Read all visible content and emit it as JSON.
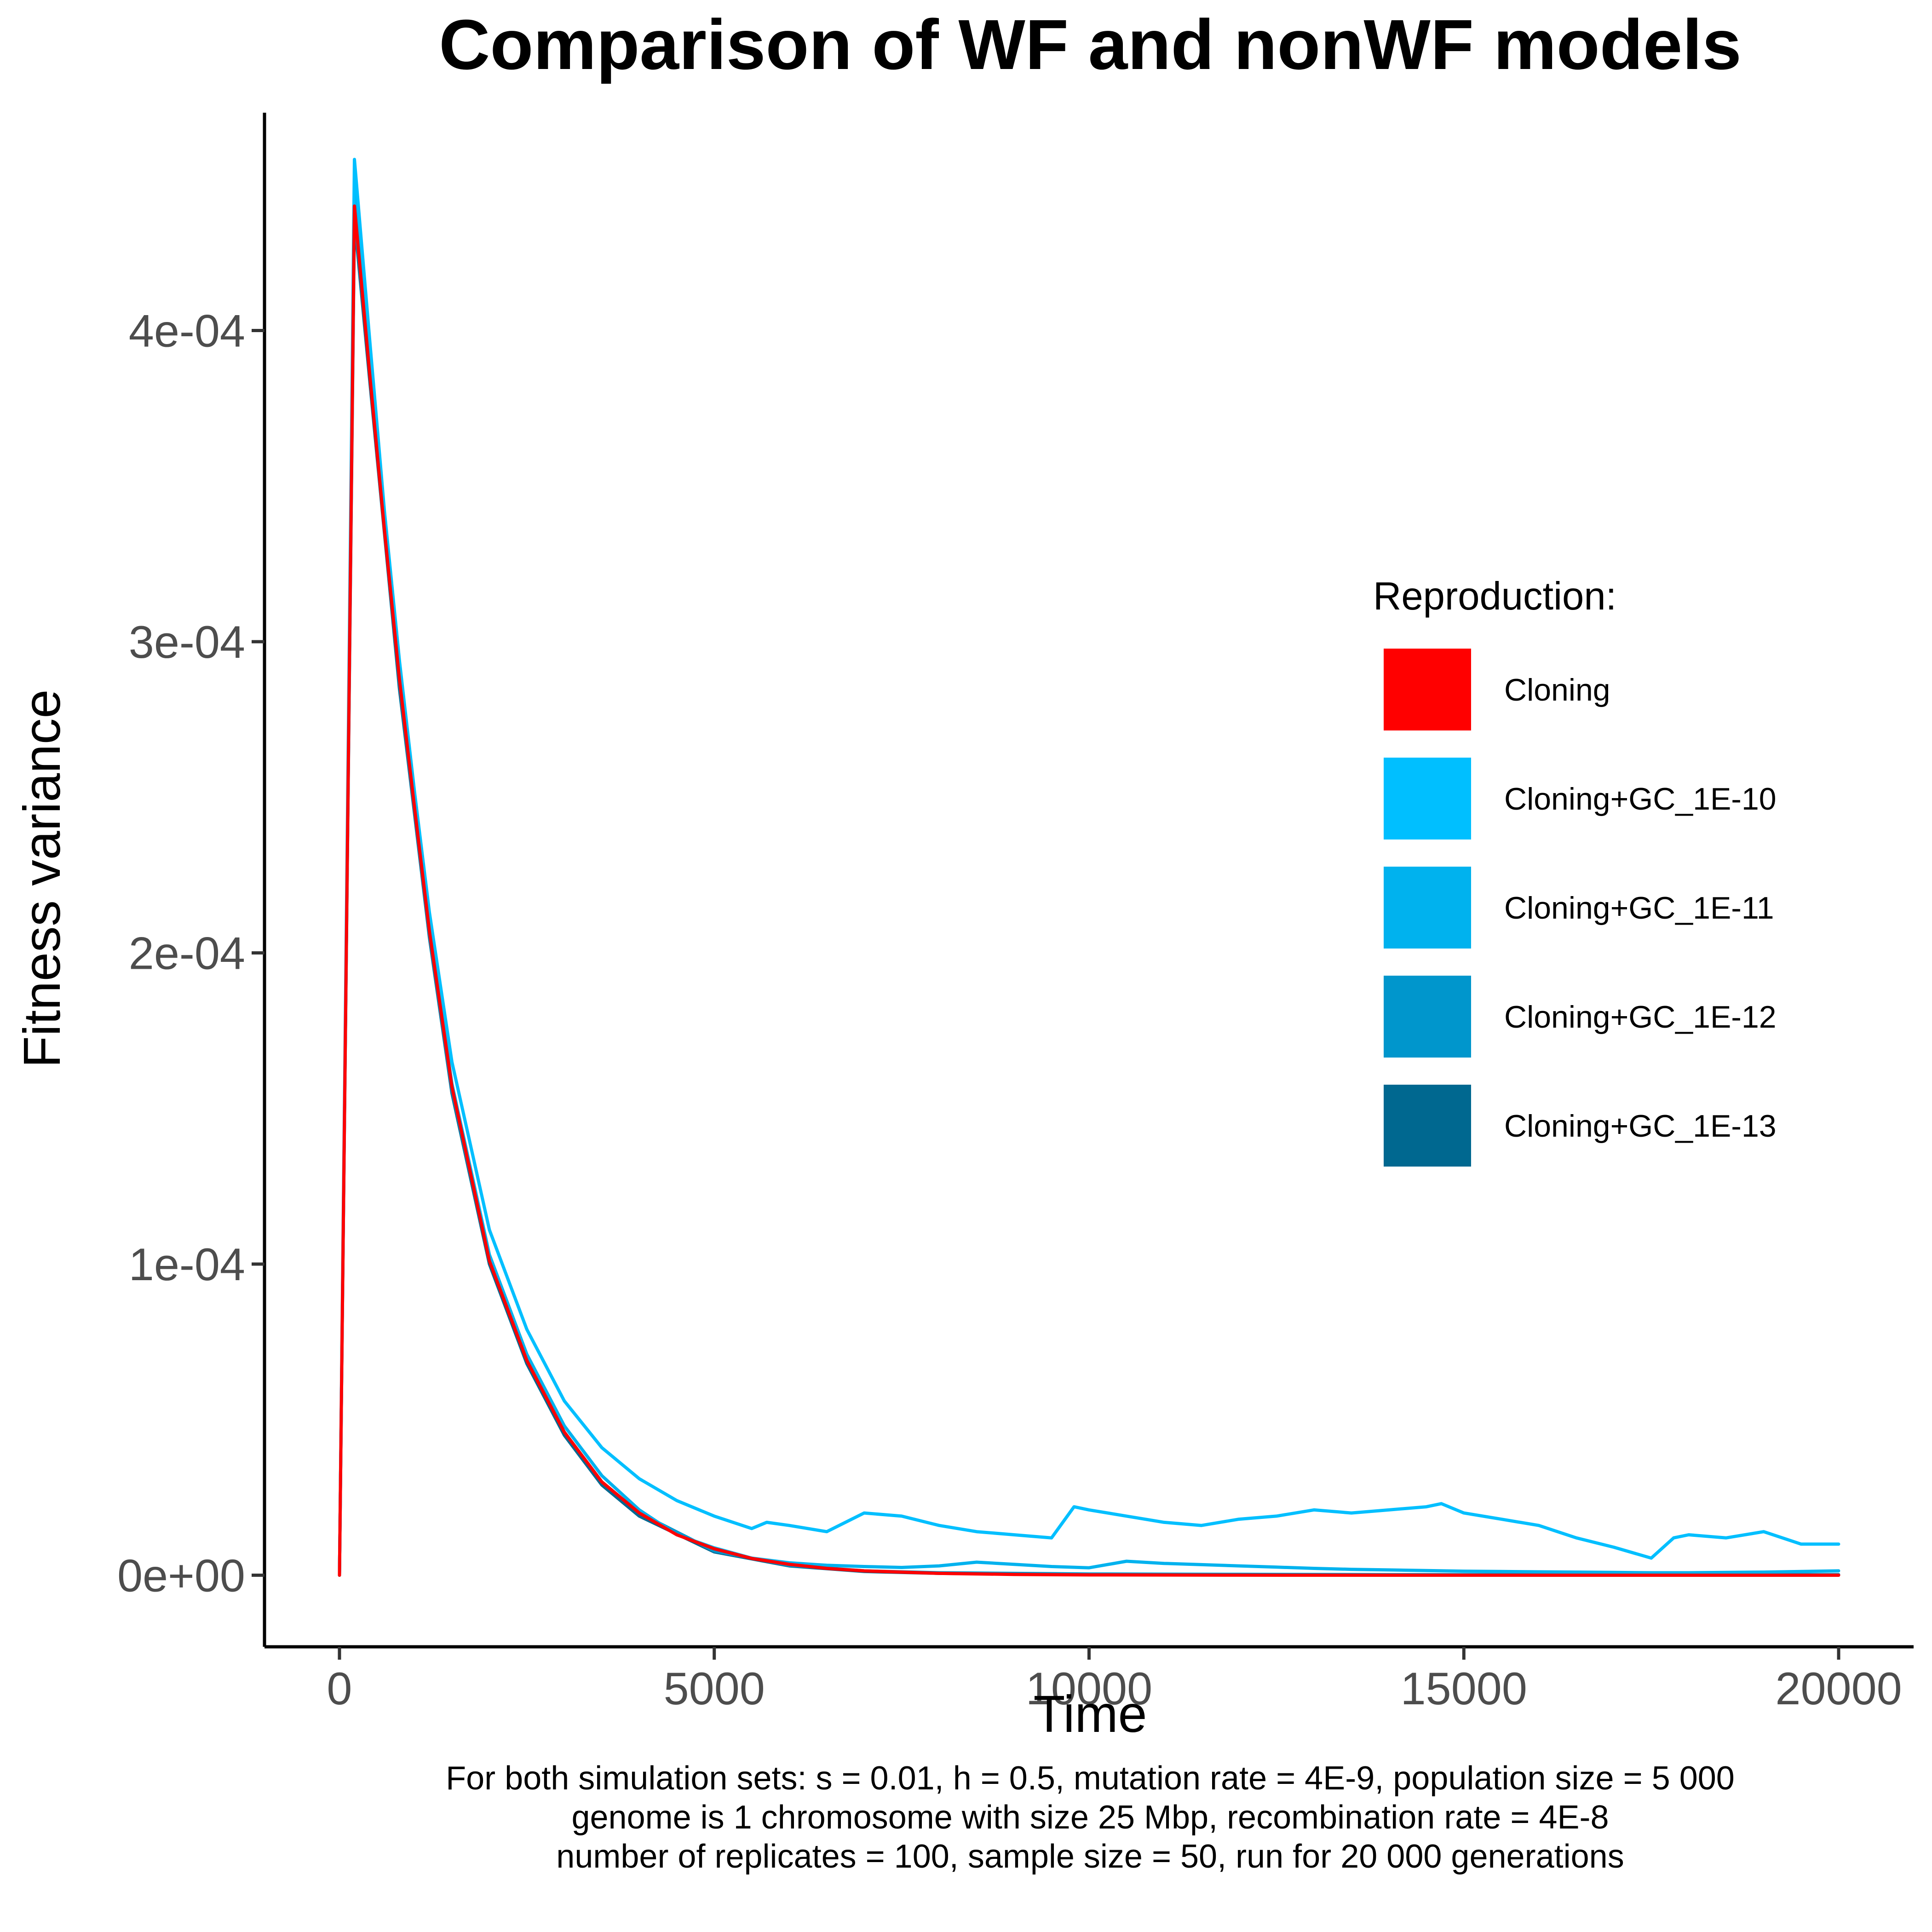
{
  "chart_data": {
    "type": "line",
    "title": "Comparison of WF and nonWF models",
    "xlabel": "Time",
    "ylabel": "Fitness variance",
    "xlim": [
      -1000,
      21000
    ],
    "ylim": [
      -2.3e-05,
      0.00047
    ],
    "x_ticks": [
      0,
      5000,
      10000,
      15000,
      20000
    ],
    "x_tick_labels": [
      "0",
      "5000",
      "10000",
      "15000",
      "20000"
    ],
    "y_ticks": [
      0,
      0.0001,
      0.0002,
      0.0003,
      0.0004
    ],
    "y_tick_labels": [
      "0e+00",
      "1e-04",
      "2e-04",
      "3e-04",
      "4e-04"
    ],
    "grid": false,
    "legend": {
      "title": "Reproduction:",
      "position": "right"
    },
    "series": [
      {
        "name": "Cloning+GC_1E-13",
        "color": "#006890",
        "x": [
          0,
          200,
          400,
          600,
          800,
          1000,
          1200,
          1500,
          2000,
          2500,
          3000,
          3500,
          4000,
          5000,
          6000,
          7000,
          8000,
          10000,
          12000,
          14000,
          16000,
          18000,
          20000
        ],
        "y": [
          0,
          0.000436,
          0.000385,
          0.000335,
          0.000285,
          0.000245,
          0.000205,
          0.000155,
          0.0001,
          6.8e-05,
          4.5e-05,
          2.9e-05,
          1.9e-05,
          7.5e-06,
          3e-06,
          1.2e-06,
          6e-07,
          2e-07,
          1e-07,
          5e-08,
          3e-08,
          2e-08,
          1e-08
        ]
      },
      {
        "name": "Cloning+GC_1E-12",
        "color": "#0096CC",
        "x": [
          0,
          200,
          400,
          600,
          800,
          1000,
          1200,
          1500,
          2000,
          2500,
          3000,
          3500,
          4000,
          5000,
          6000,
          7000,
          8000,
          10000,
          12000,
          14000,
          16000,
          18000,
          20000
        ],
        "y": [
          0,
          0.000438,
          0.000387,
          0.000336,
          0.000287,
          0.000246,
          0.000206,
          0.000156,
          0.000101,
          6.9e-05,
          4.6e-05,
          3e-05,
          2e-05,
          7.8e-06,
          3.2e-06,
          1.4e-06,
          8e-07,
          4e-07,
          3e-07,
          2e-07,
          2e-07,
          2e-07,
          2e-07
        ]
      },
      {
        "name": "Cloning+GC_1E-11",
        "color": "#00B2EE",
        "x": [
          0,
          200,
          400,
          600,
          800,
          1000,
          1200,
          1500,
          2000,
          2500,
          3000,
          3500,
          4000,
          4500,
          5000,
          5500,
          6000,
          6500,
          7000,
          7500,
          8000,
          8500,
          9000,
          9500,
          10000,
          10500,
          11000,
          11500,
          12000,
          12500,
          13000,
          13500,
          14000,
          14500,
          15000,
          15500,
          16000,
          16500,
          17000,
          17500,
          18000,
          18500,
          19000,
          19500,
          20000
        ],
        "y": [
          0,
          0.000445,
          0.000392,
          0.000338,
          0.000289,
          0.000248,
          0.000208,
          0.000158,
          0.000103,
          7.1e-05,
          4.8e-05,
          3.2e-05,
          2.1e-05,
          1.3e-05,
          8.8e-06,
          5.5e-06,
          4e-06,
          3.2e-06,
          2.8e-06,
          2.5e-06,
          3e-06,
          4.2e-06,
          3.5e-06,
          2.8e-06,
          2.4e-06,
          4.5e-06,
          3.8e-06,
          3.4e-06,
          3e-06,
          2.6e-06,
          2.2e-06,
          1.9e-06,
          1.7e-06,
          1.5e-06,
          1.3e-06,
          1.2e-06,
          1.1e-06,
          1e-06,
          9e-07,
          8e-07,
          8e-07,
          9e-07,
          1e-06,
          1.2e-06,
          1.4e-06
        ]
      },
      {
        "name": "Cloning+GC_1E-10",
        "color": "#00BFFF",
        "x": [
          0,
          200,
          400,
          600,
          800,
          1000,
          1200,
          1500,
          2000,
          2500,
          3000,
          3500,
          4000,
          4500,
          5000,
          5500,
          5700,
          6000,
          6500,
          7000,
          7500,
          8000,
          8500,
          9000,
          9500,
          9800,
          10000,
          10500,
          11000,
          11500,
          12000,
          12500,
          13000,
          13500,
          14000,
          14500,
          14700,
          15000,
          15500,
          16000,
          16500,
          17000,
          17500,
          17800,
          18000,
          18500,
          19000,
          19500,
          20000
        ],
        "y": [
          0,
          0.000455,
          0.000398,
          0.000342,
          0.000294,
          0.000252,
          0.000213,
          0.000165,
          0.000111,
          7.9e-05,
          5.6e-05,
          4.1e-05,
          3.1e-05,
          2.4e-05,
          1.9e-05,
          1.5e-05,
          1.7e-05,
          1.6e-05,
          1.4e-05,
          2e-05,
          1.9e-05,
          1.6e-05,
          1.4e-05,
          1.3e-05,
          1.2e-05,
          2.2e-05,
          2.1e-05,
          1.9e-05,
          1.7e-05,
          1.6e-05,
          1.8e-05,
          1.9e-05,
          2.1e-05,
          2e-05,
          2.1e-05,
          2.2e-05,
          2.3e-05,
          2e-05,
          1.8e-05,
          1.6e-05,
          1.2e-05,
          9e-06,
          5.5e-06,
          1.2e-05,
          1.3e-05,
          1.2e-05,
          1.4e-05,
          1e-05,
          1e-05
        ]
      },
      {
        "name": "Cloning",
        "color": "#FF0000",
        "x": [
          0,
          200,
          400,
          600,
          800,
          1000,
          1200,
          1500,
          2000,
          2500,
          3000,
          3500,
          4000,
          4500,
          5000,
          5500,
          6000,
          6500,
          7000,
          8000,
          9000,
          10000,
          12000,
          14000,
          16000,
          18000,
          20000
        ],
        "y": [
          0,
          0.00044,
          0.000387,
          0.000336,
          0.000288,
          0.000247,
          0.000207,
          0.000157,
          0.000101,
          6.9e-05,
          4.6e-05,
          3e-05,
          2e-05,
          1.3e-05,
          8.5e-06,
          5.4e-06,
          3.5e-06,
          2.2e-06,
          1.4e-06,
          6e-07,
          2.5e-07,
          1e-07,
          2e-08,
          0,
          0,
          0,
          0
        ]
      }
    ],
    "caption": [
      "For both simulation sets: s = 0.01, h = 0.5, mutation rate = 4E-9, population size = 5 000",
      "genome is 1 chromosome with size 25 Mbp, recombination rate = 4E-8",
      "number of replicates = 100, sample size = 50, run for 20 000 generations"
    ],
    "legend_order": [
      "Cloning",
      "Cloning+GC_1E-10",
      "Cloning+GC_1E-11",
      "Cloning+GC_1E-12",
      "Cloning+GC_1E-13"
    ]
  }
}
